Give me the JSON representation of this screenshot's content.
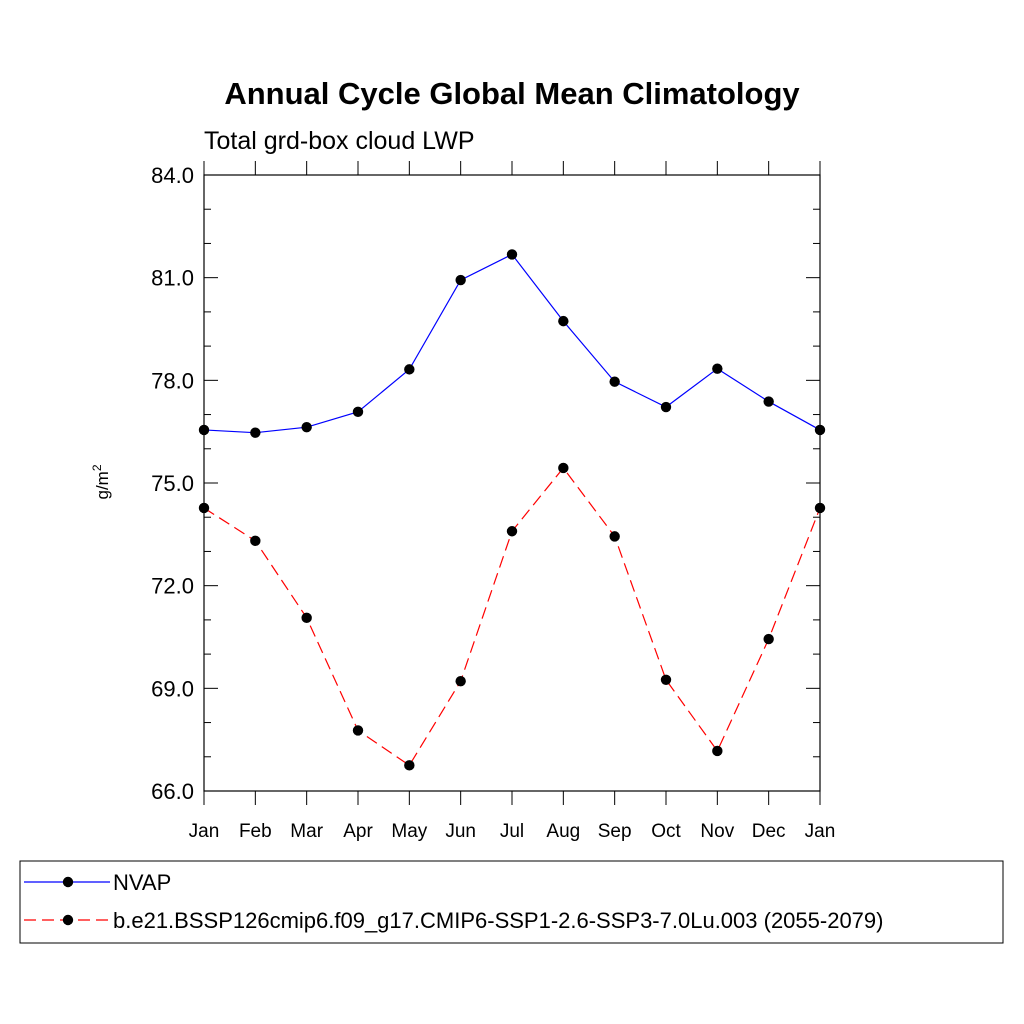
{
  "chart_data": {
    "type": "line",
    "title": "Annual Cycle Global Mean Climatology",
    "subtitle": "Total grd-box cloud LWP",
    "ylabel": "g/m",
    "ylabel_sup": "2",
    "categories": [
      "Jan",
      "Feb",
      "Mar",
      "Apr",
      "May",
      "Jun",
      "Jul",
      "Aug",
      "Sep",
      "Oct",
      "Nov",
      "Dec",
      "Jan"
    ],
    "ylim": [
      66.0,
      84.0
    ],
    "yticks": [
      66.0,
      69.0,
      72.0,
      75.0,
      78.0,
      81.0,
      84.0
    ],
    "ytick_labels": [
      "66.0",
      "69.0",
      "72.0",
      "75.0",
      "78.0",
      "81.0",
      "84.0"
    ],
    "grid": false,
    "legend_position": "bottom",
    "series": [
      {
        "name": "NVAP",
        "color": "#0000ff",
        "line_style": "solid",
        "marker": "circle",
        "values": [
          76.55,
          76.47,
          76.63,
          77.08,
          78.32,
          80.93,
          81.68,
          79.73,
          77.96,
          77.22,
          78.34,
          77.38,
          76.55
        ]
      },
      {
        "name": "b.e21.BSSP126cmip6.f09_g17.CMIP6-SSP1-2.6-SSP3-7.0Lu.003 (2055-2079)",
        "color": "#ff0000",
        "line_style": "dashed",
        "marker": "circle",
        "values": [
          74.27,
          73.31,
          71.06,
          67.77,
          66.75,
          69.21,
          73.59,
          75.44,
          73.44,
          69.25,
          67.17,
          70.44,
          74.27
        ]
      }
    ]
  }
}
